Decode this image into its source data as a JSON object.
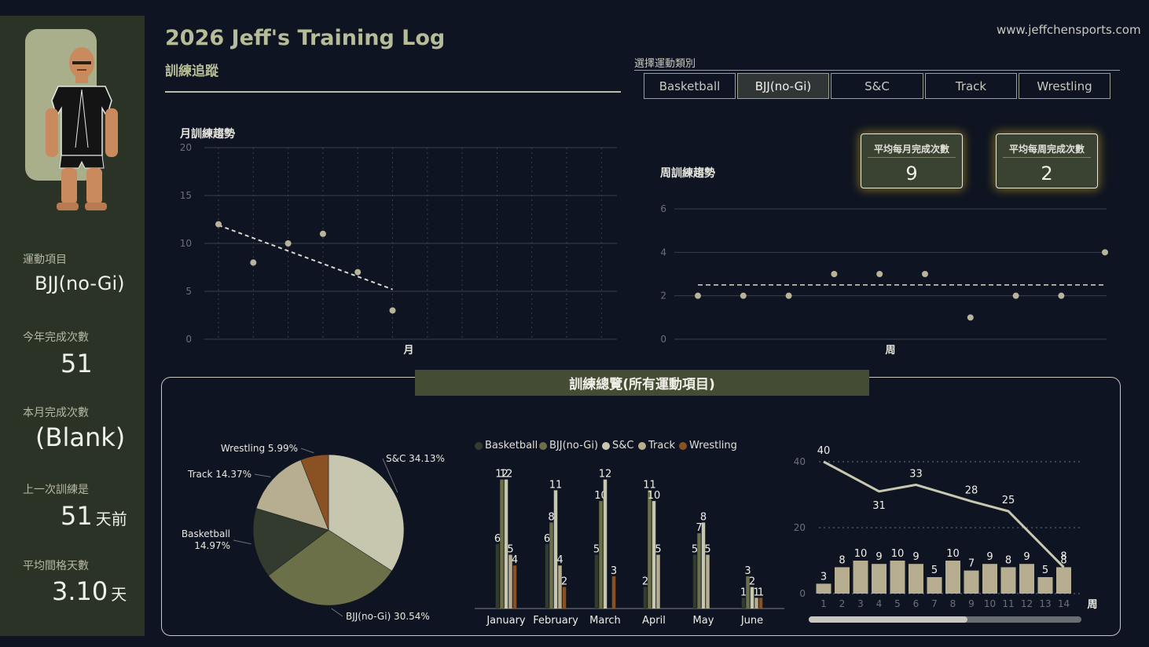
{
  "header": {
    "title": "2026 Jeff's Training Log",
    "subtitle": "訓練追蹤",
    "website": "www.jeffchensports.com"
  },
  "slicer": {
    "label": "選擇運動類別",
    "options": [
      "Basketball",
      "BJJ(no-Gi)",
      "S&C",
      "Track",
      "Wrestling"
    ],
    "selected": "BJJ(no-Gi)"
  },
  "sidebar": {
    "sport_label": "運動項目",
    "sport_value": "BJJ(no-Gi)",
    "year_label": "今年完成次數",
    "year_value": "51",
    "month_label": "本月完成次數",
    "month_value": "(Blank)",
    "last_label": "上一次訓練是",
    "last_value": "51",
    "last_unit": "天前",
    "interval_label": "平均間格天數",
    "interval_value": "3.10",
    "interval_unit": "天"
  },
  "kpis": [
    {
      "label": "平均每月完成次數",
      "value": "9"
    },
    {
      "label": "平均每周完成次數",
      "value": "2"
    }
  ],
  "summary_title": "訓練總覽(所有運動項目)",
  "colors": {
    "Basketball": "#323b2d",
    "BJJ(no-Gi)": "#6b7048",
    "S&C": "#c7c7b0",
    "Track": "#b7ae92",
    "Wrestling": "#8a5223",
    "accent": "#b7bc98"
  },
  "chart_data": [
    {
      "id": "monthly",
      "type": "scatter",
      "title": "月訓練趨勢",
      "xlabel": "月",
      "ylabel": "",
      "ylim": [
        0,
        20
      ],
      "yticks": [
        0,
        5,
        10,
        15,
        20
      ],
      "x": [
        1,
        2,
        3,
        4,
        5,
        6
      ],
      "values": [
        12,
        8,
        10,
        11,
        7,
        3
      ],
      "trendline": [
        11.9,
        5.2
      ],
      "grid": true
    },
    {
      "id": "weekly",
      "type": "scatter",
      "title": "周訓練趨勢",
      "xlabel": "周",
      "ylabel": "",
      "ylim": [
        0,
        6
      ],
      "yticks": [
        0,
        2,
        4,
        6
      ],
      "x": [
        1,
        2,
        3,
        4,
        5,
        6,
        7,
        8,
        9,
        10
      ],
      "values": [
        2,
        2,
        2,
        3,
        3,
        3,
        1,
        2,
        2,
        4
      ],
      "trendline": [
        2.5,
        2.5
      ],
      "grid": true
    },
    {
      "id": "pie",
      "type": "pie",
      "slices": [
        {
          "name": "S&C",
          "value": 34.13,
          "label": "S&C 34.13%"
        },
        {
          "name": "BJJ(no-Gi)",
          "value": 30.54,
          "label": "BJJ(no-Gi) 30.54%"
        },
        {
          "name": "Basketball",
          "value": 14.97,
          "label": "Basketball 14.97%"
        },
        {
          "name": "Track",
          "value": 14.37,
          "label": "Track 14.37%"
        },
        {
          "name": "Wrestling",
          "value": 5.99,
          "label": "Wrestling 5.99%"
        }
      ]
    },
    {
      "id": "bars",
      "type": "bar",
      "categories": [
        "January",
        "February",
        "March",
        "April",
        "May",
        "June"
      ],
      "series": [
        {
          "name": "Basketball",
          "values": [
            6,
            6,
            5,
            2,
            5,
            1
          ]
        },
        {
          "name": "BJJ(no-Gi)",
          "values": [
            12,
            8,
            10,
            11,
            7,
            3
          ]
        },
        {
          "name": "S&C",
          "values": [
            12,
            11,
            12,
            10,
            8,
            2
          ]
        },
        {
          "name": "Track",
          "values": [
            5,
            4,
            null,
            5,
            5,
            1
          ]
        },
        {
          "name": "Wrestling",
          "values": [
            4,
            2,
            3,
            null,
            null,
            1
          ]
        }
      ],
      "ylim": [
        0,
        13
      ]
    },
    {
      "id": "weekly_combo",
      "type": "bar",
      "xlabel": "周",
      "categories": [
        "1",
        "2",
        "3",
        "4",
        "5",
        "6",
        "7",
        "8",
        "9",
        "10",
        "11",
        "12",
        "13",
        "14"
      ],
      "bar_values": [
        3,
        8,
        10,
        9,
        10,
        9,
        5,
        10,
        7,
        9,
        8,
        9,
        5,
        8
      ],
      "line_x": [
        1,
        4,
        6,
        9,
        11,
        14
      ],
      "line_values": [
        40,
        31,
        33,
        28,
        25,
        8
      ],
      "ylim": [
        0,
        40
      ],
      "yticks": [
        0,
        20,
        40
      ]
    }
  ]
}
